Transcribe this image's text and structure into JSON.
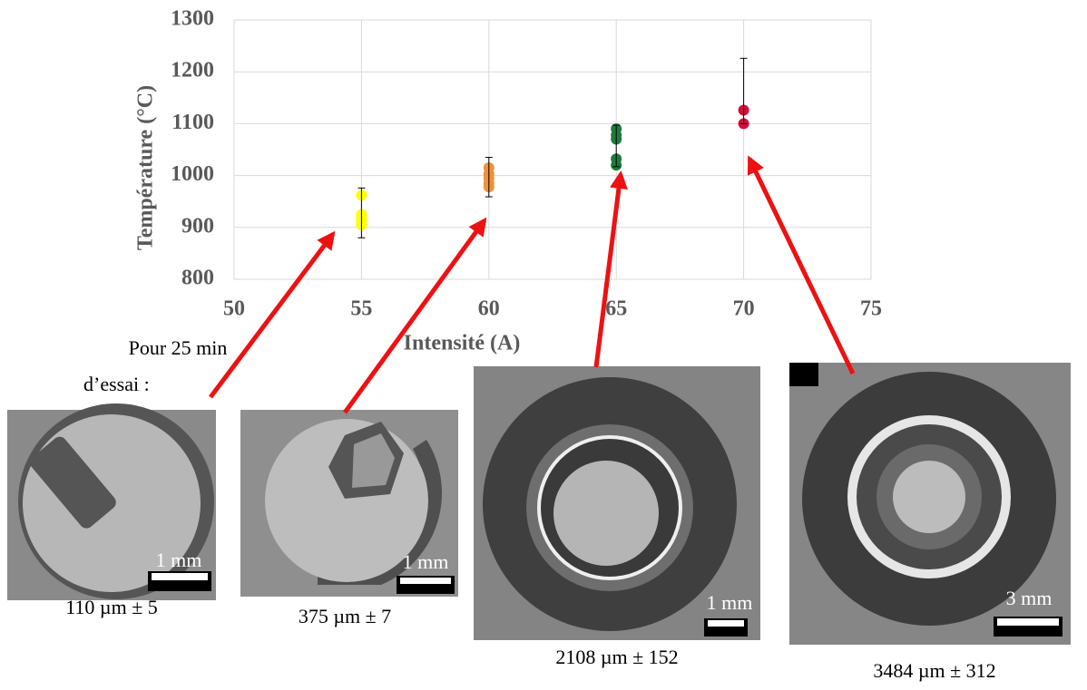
{
  "chart_data": {
    "type": "scatter",
    "x_label": "Intensité (A)",
    "y_label": "Température (°C)",
    "xlim": [
      50,
      75
    ],
    "xticks": [
      50,
      55,
      60,
      65,
      70,
      75
    ],
    "ylim": [
      800,
      1300
    ],
    "yticks": [
      800,
      900,
      1000,
      1100,
      1200,
      1300
    ],
    "grid": true,
    "series": [
      {
        "color": "#ffff00",
        "x": [
          55,
          55,
          55,
          55,
          55
        ],
        "values": [
          962,
          925,
          918,
          912,
          905
        ],
        "error_bar": {
          "center": 928,
          "error": 48
        }
      },
      {
        "color": "#f0913a",
        "x": [
          60,
          60,
          60,
          60,
          60
        ],
        "values": [
          1015,
          1003,
          995,
          985,
          978
        ],
        "error_bar": {
          "center": 997,
          "error": 38
        }
      },
      {
        "color": "#1e7b3c",
        "x": [
          65,
          65,
          65,
          65,
          65
        ],
        "values": [
          1090,
          1078,
          1070,
          1032,
          1020
        ],
        "error_bar": {
          "center": 1057,
          "error": 40
        }
      },
      {
        "color": "#d0103a",
        "x": [
          70,
          70
        ],
        "values": [
          1126,
          1100
        ],
        "error_bar": {
          "center": 1163,
          "error": 63
        }
      }
    ]
  },
  "note": [
    "Pour 25 min",
    "d’essai :"
  ],
  "samples": [
    {
      "scale": "1 mm",
      "caption": "110 µm ± 5"
    },
    {
      "scale": "1 mm",
      "caption": "375 µm ± 7"
    },
    {
      "scale": "1 mm",
      "caption": "2108 µm ± 152"
    },
    {
      "scale": "3 mm",
      "caption": "3484 µm ± 312"
    }
  ]
}
